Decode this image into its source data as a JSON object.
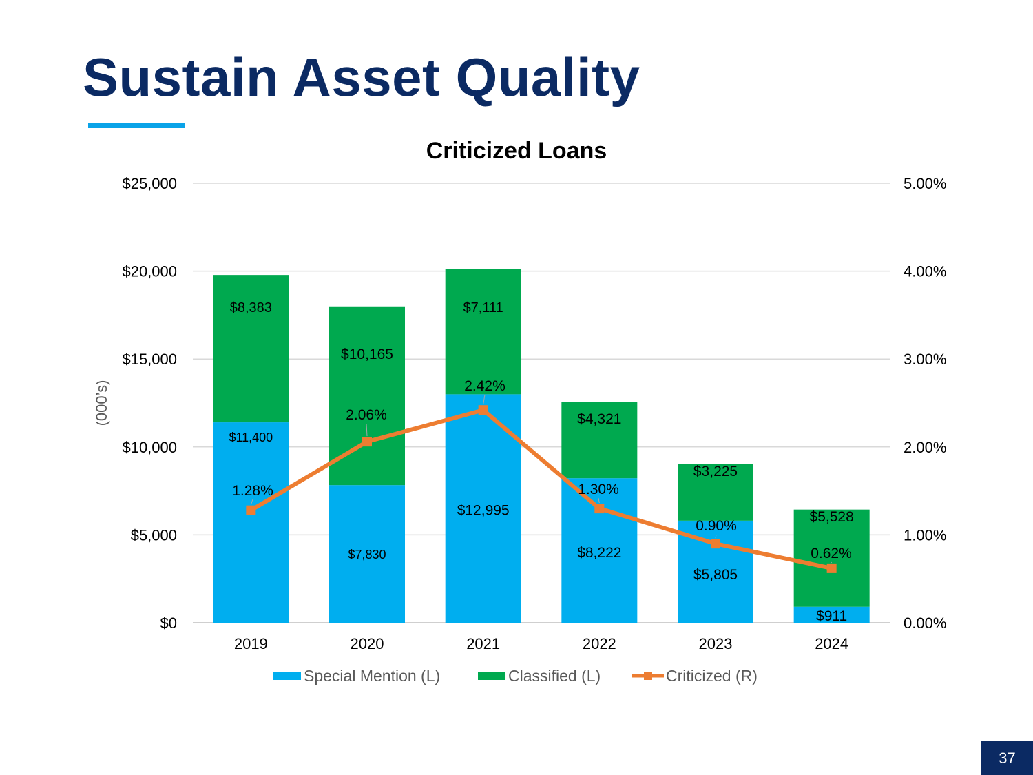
{
  "slide": {
    "title": "Sustain Asset Quality",
    "page_number": "37"
  },
  "colors": {
    "title": "#0b2a63",
    "accent_rule": "#0aa3e8",
    "special_mention": "#00aeef",
    "classified": "#00a94f",
    "criticized": "#ed7d31",
    "gridline": "#d9d9d9"
  },
  "chart_data": {
    "type": "bar",
    "stacked": true,
    "title": "Criticized Loans",
    "ylabel": "(000’s)",
    "ylim": [
      0,
      25000
    ],
    "y2lim": [
      0,
      0.05
    ],
    "y_ticks": [
      "$0",
      "$5,000",
      "$10,000",
      "$15,000",
      "$20,000",
      "$25,000"
    ],
    "y2_ticks": [
      "0.00%",
      "1.00%",
      "2.00%",
      "3.00%",
      "4.00%",
      "5.00%"
    ],
    "categories": [
      "2019",
      "2020",
      "2021",
      "2022",
      "2023",
      "2024"
    ],
    "grid": true,
    "legend_position": "bottom",
    "series": [
      {
        "name": "Special Mention (L)",
        "type": "bar",
        "axis": "left",
        "values": [
          11400,
          7830,
          12995,
          8222,
          5805,
          911
        ],
        "labels": [
          "$11,400",
          "$7,830",
          "$12,995",
          "$8,222",
          "$5,805",
          "$911"
        ]
      },
      {
        "name": "Classified (L)",
        "type": "bar",
        "axis": "left",
        "values": [
          8383,
          10165,
          7111,
          4321,
          3225,
          5528
        ],
        "labels": [
          "$8,383",
          "$10,165",
          "$7,111",
          "$4,321",
          "$3,225",
          "$5,528"
        ]
      },
      {
        "name": "Criticized (R)",
        "type": "line",
        "axis": "right",
        "values": [
          0.0128,
          0.0206,
          0.0242,
          0.013,
          0.009,
          0.0062
        ],
        "labels": [
          "1.28%",
          "2.06%",
          "2.42%",
          "1.30%",
          "0.90%",
          "0.62%"
        ]
      }
    ]
  }
}
